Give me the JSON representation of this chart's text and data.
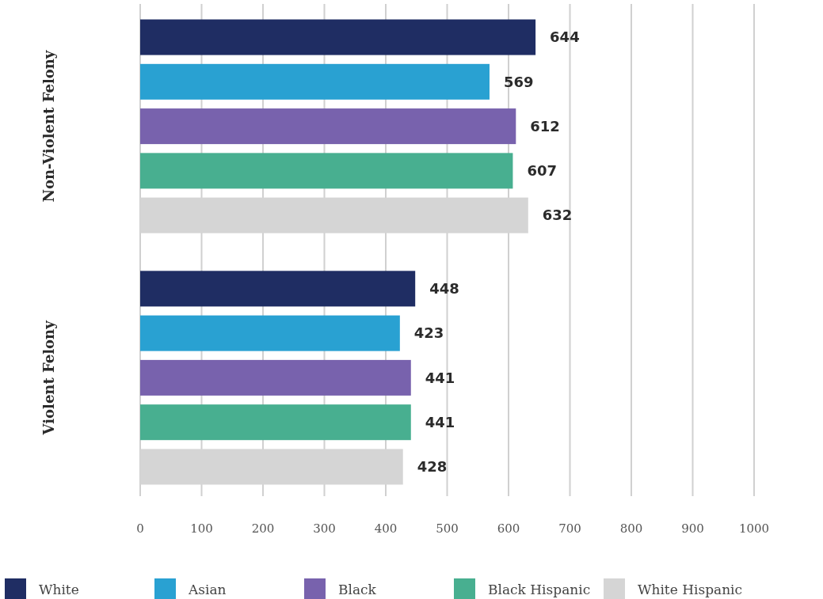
{
  "chart_data": {
    "type": "bar",
    "orientation": "horizontal",
    "categories": [
      "Non-Violent Felony",
      "Violent Felony"
    ],
    "series": [
      {
        "name": "White",
        "color": "#1f2d63",
        "values": [
          644,
          448
        ]
      },
      {
        "name": "Asian",
        "color": "#29a1d2",
        "values": [
          569,
          423
        ]
      },
      {
        "name": "Black",
        "color": "#7862ad",
        "values": [
          612,
          441
        ]
      },
      {
        "name": "Black Hispanic",
        "color": "#48af90",
        "values": [
          607,
          441
        ]
      },
      {
        "name": "White Hispanic",
        "color": "#d5d5d5",
        "values": [
          632,
          428
        ]
      }
    ],
    "xlim": [
      0,
      1000
    ],
    "xticks": [
      0,
      100,
      200,
      300,
      400,
      500,
      600,
      700,
      800,
      900,
      1000
    ],
    "grid": "x",
    "data_labels": true,
    "legend": "bottom"
  }
}
